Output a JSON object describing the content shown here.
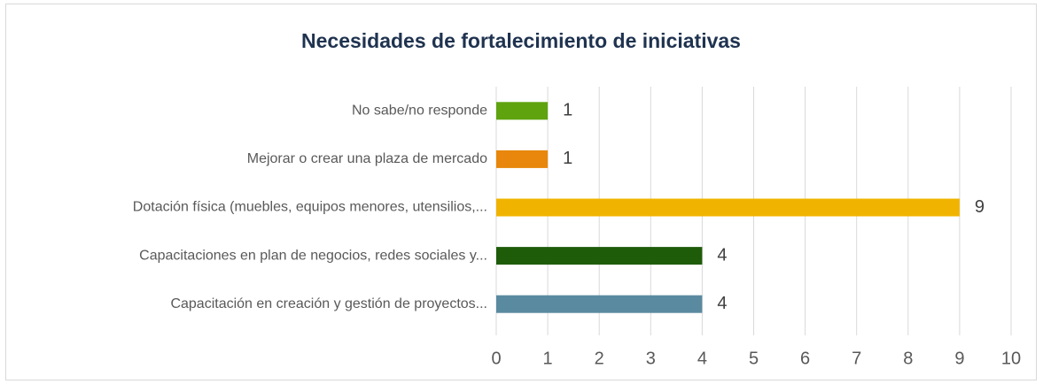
{
  "chart_data": {
    "type": "bar",
    "orientation": "horizontal",
    "title": "Necesidades de fortalecimiento de iniciativas",
    "categories": [
      "No sabe/no responde",
      "Mejorar o crear una plaza de mercado",
      "Dotación física (muebles, equipos menores, utensilios,...",
      "Capacitaciones en plan de negocios, redes sociales y...",
      "Capacitación en creación y gestión de proyectos..."
    ],
    "values": [
      1,
      1,
      9,
      4,
      4
    ],
    "colors": [
      "#5fa30f",
      "#e8870b",
      "#f0b400",
      "#1e5c0a",
      "#5a8aa0"
    ],
    "xlim": [
      0,
      10
    ],
    "xticks": [
      0,
      1,
      2,
      3,
      4,
      5,
      6,
      7,
      8,
      9,
      10
    ],
    "grid": true
  }
}
